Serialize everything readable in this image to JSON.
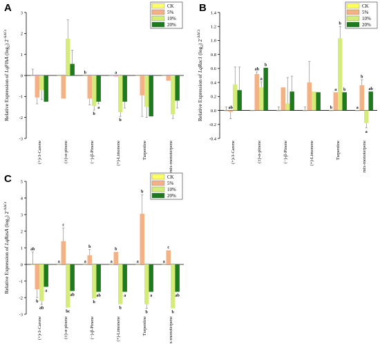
{
  "figure": {
    "legend": [
      {
        "label": "CK",
        "color": "#ffff66"
      },
      {
        "label": "5%",
        "color": "#f4b183"
      },
      {
        "label": "10%",
        "color": "#d4ec7a"
      },
      {
        "label": "20%",
        "color": "#1f7a1f"
      }
    ]
  },
  "chart_data": [
    {
      "type": "bar",
      "panel": "A",
      "ylabel_prefix": "Relative Expression of ",
      "ylabel_gene": "LqFlhA",
      "ylabel_suffix": " (log",
      "ylabel_sub": "2",
      "ylabel_end": ") 2",
      "ylabel_sup": "-ΔΔCt",
      "ylim": [
        -3,
        3
      ],
      "yticks": [
        "-3",
        "-2",
        "-1",
        "0",
        "1",
        "2",
        "3"
      ],
      "categories": [
        "(+)-3-Carene",
        "(±)-α-pinene",
        "(−)-β-Pinene",
        "(+)-Limonene",
        "Turpentine",
        "mix-monoterpene"
      ],
      "series": [
        {
          "name": "CK",
          "values": [
            0,
            0,
            0,
            0,
            0,
            0
          ],
          "errors": [
            0.3,
            0.0,
            0.0,
            0.0,
            0.0,
            0.0
          ]
        },
        {
          "name": "5%",
          "values": [
            -1.05,
            -1.1,
            -1.1,
            -0.05,
            -0.95,
            -0.25
          ],
          "errors": [
            0.3,
            0.0,
            0.3,
            0.0,
            1.0,
            0.0
          ]
        },
        {
          "name": "10%",
          "values": [
            -0.7,
            1.75,
            -1.45,
            -1.75,
            -1.5,
            -1.85
          ],
          "errors": [
            0.45,
            0.9,
            0.2,
            0.2,
            0.5,
            0.2
          ]
        },
        {
          "name": "20%",
          "values": [
            -1.25,
            0.55,
            -1.25,
            -1.25,
            -1.95,
            -1.2
          ],
          "errors": [
            0.0,
            0.65,
            0.1,
            0.3,
            0.0,
            0.35
          ]
        }
      ],
      "sig_labels": [
        {
          "cat": 2,
          "series": 0,
          "text": "b",
          "where": "above"
        },
        {
          "cat": 2,
          "series": 2,
          "text": "b",
          "where": "below"
        },
        {
          "cat": 2,
          "series": 3,
          "text": "a",
          "where": "below"
        },
        {
          "cat": 3,
          "series": 1,
          "text": "a",
          "where": "above"
        },
        {
          "cat": 3,
          "series": 2,
          "text": "b",
          "where": "below"
        }
      ]
    },
    {
      "type": "bar",
      "panel": "B",
      "ylabel_prefix": "Relative Expression of ",
      "ylabel_gene": "LqRac1",
      "ylabel_suffix": " (log",
      "ylabel_sub": "2",
      "ylabel_end": ") 2",
      "ylabel_sup": "-ΔΔCt",
      "ylim": [
        -0.4,
        1.4
      ],
      "yticks": [
        "-0.4",
        "-0.2",
        "0.0",
        "0.2",
        "0.4",
        "0.6",
        "0.8",
        "1.0",
        "1.2",
        "1.4"
      ],
      "categories": [
        "(+)-3-Carene",
        "(±)-α-pinene",
        "(−)-β-Pinene",
        "(+)-Limonene",
        "Turpentine",
        "mix-monoterpene"
      ],
      "series": [
        {
          "name": "CK",
          "values": [
            0,
            0,
            0,
            0,
            0,
            0
          ],
          "errors": [
            0.05,
            0.0,
            0.05,
            0.05,
            0.0,
            0.0
          ]
        },
        {
          "name": "5%",
          "values": [
            -0.02,
            0.52,
            0.33,
            0.4,
            0.26,
            0.36
          ],
          "errors": [
            0.1,
            0.03,
            0.0,
            0.3,
            0.0,
            0.08
          ]
        },
        {
          "name": "10%",
          "values": [
            0.37,
            0.33,
            0.1,
            0.27,
            1.03,
            -0.18
          ],
          "errors": [
            0.25,
            0.08,
            0.37,
            0.0,
            0.17,
            0.07
          ]
        },
        {
          "name": "20%",
          "values": [
            0.29,
            0.61,
            0.27,
            0.26,
            0.26,
            0.27
          ],
          "errors": [
            0.33,
            0.0,
            0.22,
            0.0,
            0.0,
            0.0
          ]
        }
      ],
      "sig_labels": [
        {
          "cat": 0,
          "series": 1,
          "text": "ab",
          "where": "above"
        },
        {
          "cat": 1,
          "series": 1,
          "text": "ab",
          "where": "above"
        },
        {
          "cat": 1,
          "series": 2,
          "text": "a",
          "where": "above"
        },
        {
          "cat": 1,
          "series": 3,
          "text": "b",
          "where": "above"
        },
        {
          "cat": 4,
          "series": 0,
          "text": "b",
          "where": "above"
        },
        {
          "cat": 4,
          "series": 1,
          "text": "a",
          "where": "above"
        },
        {
          "cat": 4,
          "series": 2,
          "text": "b",
          "where": "above"
        },
        {
          "cat": 4,
          "series": 3,
          "text": "b",
          "where": "above"
        },
        {
          "cat": 5,
          "series": 0,
          "text": "a",
          "where": "above"
        },
        {
          "cat": 5,
          "series": 1,
          "text": "b",
          "where": "above"
        },
        {
          "cat": 5,
          "series": 2,
          "text": "a",
          "where": "below"
        },
        {
          "cat": 5,
          "series": 3,
          "text": "ab",
          "where": "above"
        }
      ]
    },
    {
      "type": "bar",
      "panel": "C",
      "ylabel_prefix": "Relative Expression of ",
      "ylabel_gene": "LqRasA",
      "ylabel_suffix": " (log",
      "ylabel_sub": "2",
      "ylabel_end": ") 2",
      "ylabel_sup": "-ΔΔCt",
      "ylim": [
        -3,
        5
      ],
      "yticks": [
        "-3",
        "-2",
        "-1",
        "0",
        "1",
        "2",
        "3",
        "4",
        "5"
      ],
      "categories": [
        "(+)-3-Carene",
        "(±)-α-pinene",
        "(−)-β-Pinene",
        "(+)-Limonene",
        "Turpentine",
        "mix-monoterpene"
      ],
      "series": [
        {
          "name": "CK",
          "values": [
            0,
            0,
            0,
            0,
            0,
            0
          ],
          "errors": [
            0.75,
            0.0,
            0.0,
            0.0,
            0.0,
            0.0
          ]
        },
        {
          "name": "5%",
          "values": [
            -1.5,
            1.4,
            0.55,
            0.75,
            3.05,
            0.85
          ],
          "errors": [
            0.5,
            0.8,
            0.35,
            0.0,
            1.15,
            0.0
          ]
        },
        {
          "name": "10%",
          "values": [
            -2.2,
            -2.6,
            -2.05,
            -2.4,
            -2.4,
            -2.65
          ],
          "errors": [
            0.2,
            0.0,
            0.0,
            0.0,
            0.25,
            0.0
          ]
        },
        {
          "name": "20%",
          "values": [
            -1.35,
            -1.6,
            -1.65,
            -1.65,
            -1.65,
            -1.65
          ],
          "errors": [
            0.0,
            0.0,
            0.0,
            0.0,
            0.0,
            0.0
          ]
        }
      ],
      "sig_labels": [
        {
          "cat": 0,
          "series": 0,
          "text": "ab",
          "where": "above"
        },
        {
          "cat": 0,
          "series": 1,
          "text": "b",
          "where": "below"
        },
        {
          "cat": 0,
          "series": 2,
          "text": "ab",
          "where": "below"
        },
        {
          "cat": 0,
          "series": 3,
          "text": "a",
          "where": "below"
        },
        {
          "cat": 1,
          "series": 0,
          "text": "a",
          "where": "above"
        },
        {
          "cat": 1,
          "series": 1,
          "text": "c",
          "where": "above"
        },
        {
          "cat": 1,
          "series": 2,
          "text": "bc",
          "where": "below"
        },
        {
          "cat": 1,
          "series": 3,
          "text": "ab",
          "where": "below"
        },
        {
          "cat": 2,
          "series": 0,
          "text": "a",
          "where": "above"
        },
        {
          "cat": 2,
          "series": 1,
          "text": "b",
          "where": "above"
        },
        {
          "cat": 2,
          "series": 2,
          "text": "b",
          "where": "below"
        },
        {
          "cat": 2,
          "series": 3,
          "text": "ab",
          "where": "below"
        },
        {
          "cat": 3,
          "series": 0,
          "text": "a",
          "where": "above"
        },
        {
          "cat": 3,
          "series": 1,
          "text": "b",
          "where": "above"
        },
        {
          "cat": 3,
          "series": 2,
          "text": "b",
          "where": "below"
        },
        {
          "cat": 3,
          "series": 3,
          "text": "a",
          "where": "below"
        },
        {
          "cat": 4,
          "series": 0,
          "text": "a",
          "where": "above"
        },
        {
          "cat": 4,
          "series": 1,
          "text": "b",
          "where": "above"
        },
        {
          "cat": 4,
          "series": 2,
          "text": "b",
          "where": "below"
        },
        {
          "cat": 4,
          "series": 3,
          "text": "a",
          "where": "below"
        },
        {
          "cat": 5,
          "series": 0,
          "text": "a",
          "where": "above"
        },
        {
          "cat": 5,
          "series": 1,
          "text": "c",
          "where": "above"
        },
        {
          "cat": 5,
          "series": 2,
          "text": "b",
          "where": "below"
        },
        {
          "cat": 5,
          "series": 3,
          "text": "ab",
          "where": "below"
        }
      ]
    }
  ]
}
